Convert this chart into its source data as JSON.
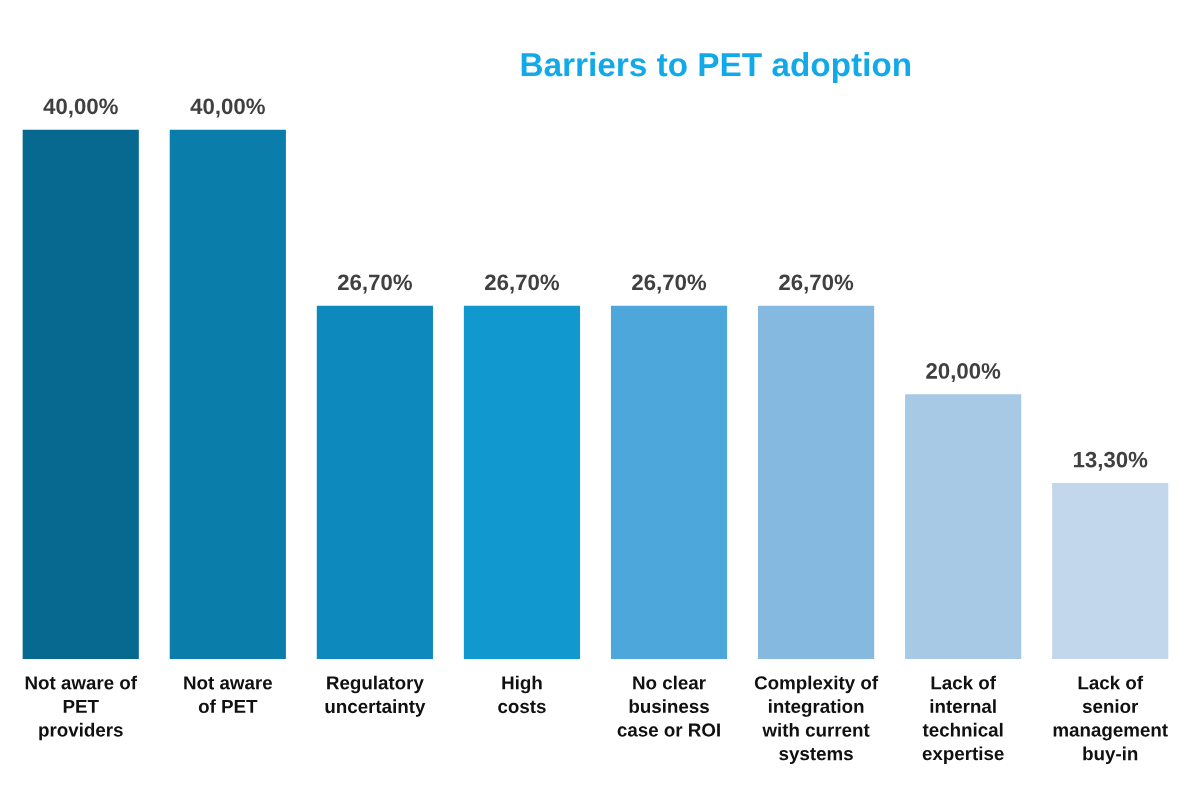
{
  "chart_data": {
    "type": "bar",
    "title": "Barriers to PET adoption",
    "categories": [
      "Not aware of\nPET\nproviders",
      "Not aware\nof PET",
      "Regulatory\nuncertainty",
      "High\ncosts",
      "No clear\nbusiness\ncase or ROI",
      "Complexity of\nintegration\nwith current\nsystems",
      "Lack of\ninternal\ntechnical\nexpertise",
      "Lack of\nsenior\nmanagement\nbuy-in"
    ],
    "values": [
      40.0,
      40.0,
      26.7,
      26.7,
      26.7,
      26.7,
      20.0,
      13.3
    ],
    "value_labels": [
      "40,00%",
      "40,00%",
      "26,70%",
      "26,70%",
      "26,70%",
      "26,70%",
      "20,00%",
      "13,30%"
    ],
    "colors": [
      "#07698f",
      "#0b7dab",
      "#0e89bd",
      "#1098cf",
      "#4da7da",
      "#86b9e0",
      "#a8c9e5",
      "#c2d7ec"
    ],
    "grid": false,
    "legend": false
  }
}
